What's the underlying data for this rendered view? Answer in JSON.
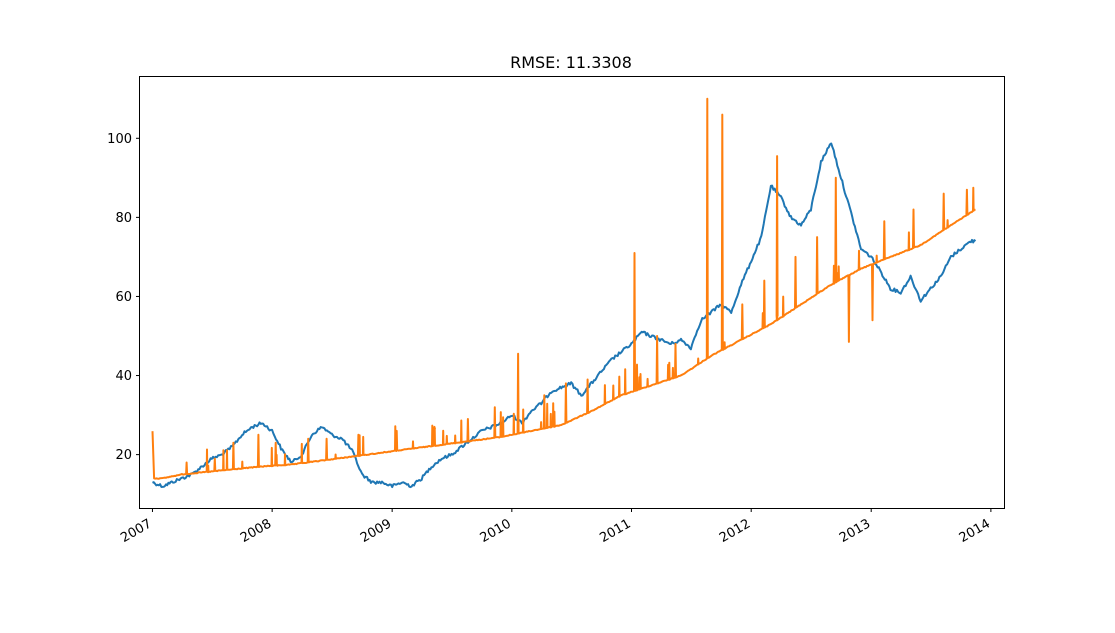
{
  "chart_data": {
    "type": "line",
    "title": "RMSE: 11.3308",
    "xlabel": "",
    "ylabel": "",
    "x_axis": {
      "type": "date",
      "range": [
        "2006-11-24",
        "2014-02-10"
      ],
      "ticks": [
        "2007",
        "2008",
        "2009",
        "2010",
        "2011",
        "2012",
        "2013",
        "2014"
      ],
      "tick_dates": [
        "2007-01-01",
        "2008-01-01",
        "2009-01-01",
        "2010-01-01",
        "2011-01-01",
        "2012-01-01",
        "2013-01-01",
        "2014-01-01"
      ]
    },
    "y_axis": {
      "range": [
        6.5,
        115.5
      ],
      "ticks": [
        20,
        40,
        60,
        80,
        100
      ]
    },
    "grid": false,
    "legend": "none",
    "series": [
      {
        "color": "#1f77b4",
        "points": [
          [
            "2007-01-01",
            13
          ],
          [
            "2007-02-01",
            12
          ],
          [
            "2007-03-01",
            13
          ],
          [
            "2007-04-01",
            14
          ],
          [
            "2007-05-01",
            15
          ],
          [
            "2007-06-01",
            17
          ],
          [
            "2007-07-01",
            19
          ],
          [
            "2007-08-01",
            20
          ],
          [
            "2007-09-01",
            22
          ],
          [
            "2007-10-01",
            25
          ],
          [
            "2007-11-01",
            27
          ],
          [
            "2007-12-01",
            28
          ],
          [
            "2008-01-01",
            26
          ],
          [
            "2008-02-01",
            21
          ],
          [
            "2008-03-01",
            18
          ],
          [
            "2008-04-01",
            20
          ],
          [
            "2008-05-01",
            25
          ],
          [
            "2008-06-01",
            27
          ],
          [
            "2008-07-01",
            25
          ],
          [
            "2008-08-01",
            24
          ],
          [
            "2008-09-01",
            21
          ],
          [
            "2008-10-01",
            15
          ],
          [
            "2008-11-01",
            13
          ],
          [
            "2008-12-01",
            13
          ],
          [
            "2009-01-01",
            12
          ],
          [
            "2009-02-01",
            13
          ],
          [
            "2009-03-01",
            12
          ],
          [
            "2009-04-01",
            14
          ],
          [
            "2009-05-01",
            17
          ],
          [
            "2009-06-01",
            19
          ],
          [
            "2009-07-01",
            20
          ],
          [
            "2009-08-01",
            22
          ],
          [
            "2009-09-01",
            24
          ],
          [
            "2009-10-01",
            26
          ],
          [
            "2009-11-01",
            27
          ],
          [
            "2009-12-01",
            28
          ],
          [
            "2010-01-01",
            30
          ],
          [
            "2010-02-01",
            28
          ],
          [
            "2010-03-01",
            31
          ],
          [
            "2010-04-01",
            33
          ],
          [
            "2010-05-01",
            36
          ],
          [
            "2010-06-01",
            37
          ],
          [
            "2010-07-01",
            38
          ],
          [
            "2010-08-01",
            35
          ],
          [
            "2010-09-01",
            38
          ],
          [
            "2010-10-01",
            41
          ],
          [
            "2010-11-01",
            44
          ],
          [
            "2010-12-01",
            46
          ],
          [
            "2011-01-01",
            48
          ],
          [
            "2011-02-01",
            51
          ],
          [
            "2011-03-01",
            50
          ],
          [
            "2011-04-01",
            49
          ],
          [
            "2011-05-01",
            48
          ],
          [
            "2011-06-01",
            49
          ],
          [
            "2011-07-01",
            47
          ],
          [
            "2011-08-01",
            54
          ],
          [
            "2011-09-01",
            56
          ],
          [
            "2011-10-01",
            58
          ],
          [
            "2011-11-01",
            56
          ],
          [
            "2011-12-01",
            63
          ],
          [
            "2012-01-01",
            69
          ],
          [
            "2012-02-01",
            75
          ],
          [
            "2012-03-01",
            88
          ],
          [
            "2012-04-01",
            85
          ],
          [
            "2012-05-01",
            80
          ],
          [
            "2012-06-01",
            78
          ],
          [
            "2012-07-01",
            82
          ],
          [
            "2012-08-01",
            94
          ],
          [
            "2012-09-01",
            99
          ],
          [
            "2012-10-01",
            90
          ],
          [
            "2012-11-01",
            81
          ],
          [
            "2012-12-01",
            72
          ],
          [
            "2013-01-01",
            70
          ],
          [
            "2013-02-01",
            66
          ],
          [
            "2013-03-01",
            62
          ],
          [
            "2013-04-01",
            61
          ],
          [
            "2013-05-01",
            65
          ],
          [
            "2013-06-01",
            59
          ],
          [
            "2013-07-01",
            62
          ],
          [
            "2013-08-01",
            65
          ],
          [
            "2013-09-01",
            70
          ],
          [
            "2013-10-01",
            72
          ],
          [
            "2013-11-01",
            74
          ],
          [
            "2013-11-15",
            74
          ]
        ]
      },
      {
        "color": "#ff7f0e",
        "points": [
          [
            "2007-01-01",
            26
          ],
          [
            "2007-01-06",
            14
          ],
          [
            "2007-02-01",
            14
          ],
          [
            "2007-03-01",
            14.5
          ],
          [
            "2007-04-01",
            15
          ],
          [
            "2007-06-01",
            15.5
          ],
          [
            "2007-08-01",
            16
          ],
          [
            "2007-10-01",
            16.5
          ],
          [
            "2007-12-01",
            17
          ],
          [
            "2008-03-01",
            17.5
          ],
          [
            "2008-06-01",
            18.5
          ],
          [
            "2008-09-01",
            19.5
          ],
          [
            "2008-12-01",
            20.5
          ],
          [
            "2009-03-01",
            21.5
          ],
          [
            "2009-06-01",
            22.5
          ],
          [
            "2009-09-01",
            23.5
          ],
          [
            "2009-12-01",
            24.5
          ],
          [
            "2010-03-01",
            26
          ],
          [
            "2010-06-01",
            27.5
          ],
          [
            "2010-09-01",
            31
          ],
          [
            "2010-12-01",
            35
          ],
          [
            "2011-03-01",
            37.5
          ],
          [
            "2011-06-01",
            40
          ],
          [
            "2011-09-01",
            45
          ],
          [
            "2011-12-01",
            49
          ],
          [
            "2012-03-01",
            53
          ],
          [
            "2012-06-01",
            58
          ],
          [
            "2012-09-01",
            63
          ],
          [
            "2012-12-01",
            67
          ],
          [
            "2013-03-01",
            70
          ],
          [
            "2013-06-01",
            73
          ],
          [
            "2013-09-01",
            78
          ],
          [
            "2013-11-15",
            82
          ]
        ],
        "spikes": [
          [
            "2007-04-15",
            18
          ],
          [
            "2007-07-10",
            19
          ],
          [
            "2007-09-05",
            23
          ],
          [
            "2007-11-20",
            25
          ],
          [
            "2008-01-12",
            23
          ],
          [
            "2008-04-20",
            24
          ],
          [
            "2008-06-15",
            24
          ],
          [
            "2008-09-20",
            25
          ],
          [
            "2009-01-15",
            26
          ],
          [
            "2009-05-10",
            27
          ],
          [
            "2009-08-20",
            29
          ],
          [
            "2009-11-10",
            32
          ],
          [
            "2010-01-20",
            45.5
          ],
          [
            "2010-04-10",
            35
          ],
          [
            "2010-06-15",
            38
          ],
          [
            "2010-08-20",
            39
          ],
          [
            "2011-01-10",
            71
          ],
          [
            "2011-03-20",
            50
          ],
          [
            "2011-05-15",
            48
          ],
          [
            "2011-08-20",
            110
          ],
          [
            "2011-10-05",
            106
          ],
          [
            "2011-12-05",
            58
          ],
          [
            "2012-02-10",
            64
          ],
          [
            "2012-03-20",
            95.5
          ],
          [
            "2012-05-15",
            70
          ],
          [
            "2012-07-20",
            75
          ],
          [
            "2012-09-15",
            90
          ],
          [
            "2012-10-25",
            48.5
          ],
          [
            "2013-01-05",
            54
          ],
          [
            "2013-02-10",
            79
          ],
          [
            "2013-05-10",
            82
          ],
          [
            "2013-08-10",
            86
          ],
          [
            "2013-10-20",
            87
          ]
        ]
      }
    ]
  }
}
